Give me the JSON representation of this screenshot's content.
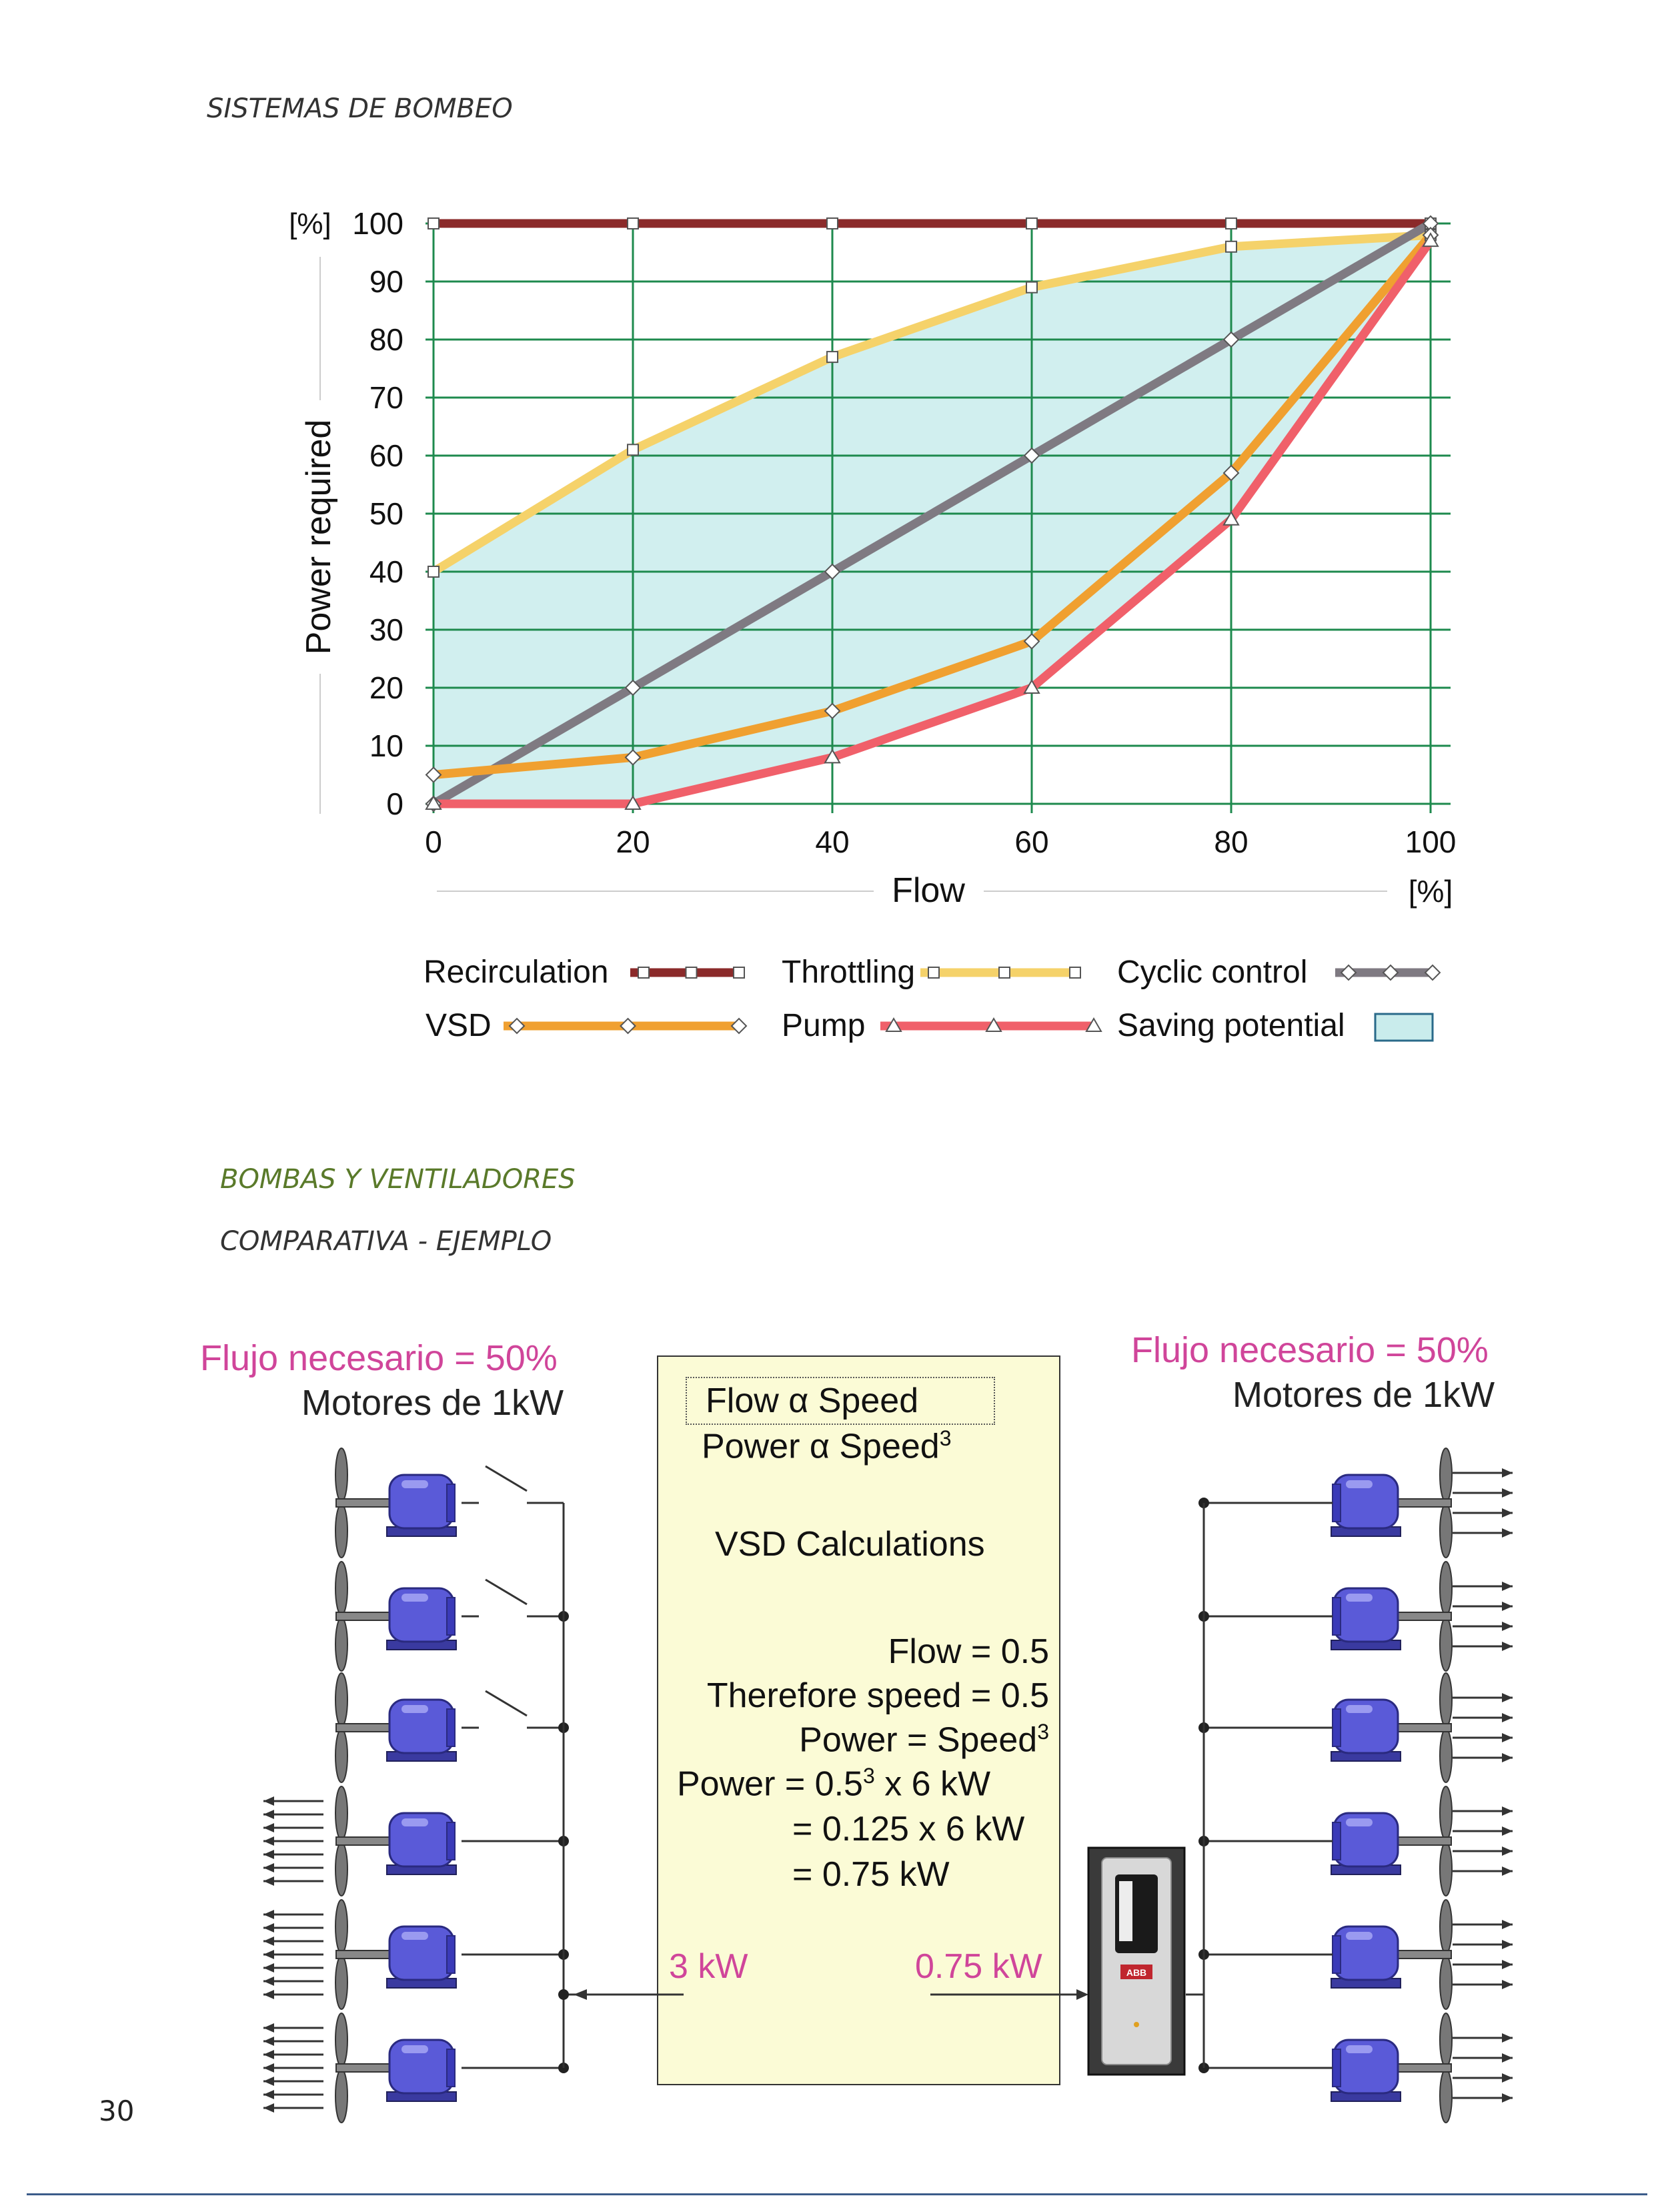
{
  "page_header": "SISTEMAS DE BOMBEO",
  "chart_data": {
    "type": "line",
    "title": "",
    "ylabel": "Power required",
    "yunit": "[%]",
    "xlabel": "Flow",
    "xunit": "[%]",
    "xlim": [
      0,
      100
    ],
    "ylim": [
      0,
      100
    ],
    "xticks": [
      "0",
      "20",
      "40",
      "60",
      "80",
      "100"
    ],
    "yticks": [
      "0",
      "10",
      "20",
      "30",
      "40",
      "50",
      "60",
      "70",
      "80",
      "90",
      "100"
    ],
    "x": [
      0,
      20,
      40,
      60,
      80,
      100
    ],
    "series": [
      {
        "name": "Recirculation",
        "color": "#8b2a2a",
        "marker": "square",
        "values": [
          100,
          100,
          100,
          100,
          100,
          100
        ]
      },
      {
        "name": "Throttling",
        "color": "#f5d26a",
        "marker": "square",
        "values": [
          40,
          61,
          77,
          89,
          96,
          98
        ]
      },
      {
        "name": "Cyclic control",
        "color": "#7f7a82",
        "marker": "diamond",
        "values": [
          0,
          20,
          40,
          60,
          80,
          100
        ]
      },
      {
        "name": "VSD",
        "color": "#f0a030",
        "marker": "diamond",
        "values": [
          5,
          8,
          16,
          28,
          57,
          98
        ]
      },
      {
        "name": "Pump",
        "color": "#f0606a",
        "marker": "triangle",
        "values": [
          0,
          0,
          8,
          20,
          49,
          97
        ]
      }
    ],
    "saving_potential": {
      "name": "Saving potential",
      "color": "#c9ecec"
    },
    "grid": true
  },
  "legend": {
    "recirculation": "Recirculation",
    "throttling": "Throttling",
    "cyclic": "Cyclic control",
    "vsd": "VSD",
    "pump": "Pump",
    "saving": "Saving potential"
  },
  "section": {
    "title": "BOMBAS Y VENTILADORES",
    "subtitle": "COMPARATIVA - EJEMPLO"
  },
  "left": {
    "flujo": "Flujo necesario = 50%",
    "motores": "Motores de 1kW",
    "power": "3 kW"
  },
  "right": {
    "flujo": "Flujo necesario = 50%",
    "motores": "Motores de 1kW",
    "power": "0.75 kW"
  },
  "calc": {
    "flow_line": "Flow  α  Speed",
    "power_line": "Power α  Speed",
    "exp3": "3",
    "heading": "VSD Calculations",
    "l1": "Flow = 0.5",
    "l2": "Therefore speed = 0.5",
    "l3": "Power = Speed",
    "l4a": "Power = 0.5",
    "l4b": " x 6 kW",
    "l5": "= 0.125 x 6 kW",
    "l6": "= 0.75 kW"
  },
  "drive_logo": "ABB",
  "page_number": "30"
}
